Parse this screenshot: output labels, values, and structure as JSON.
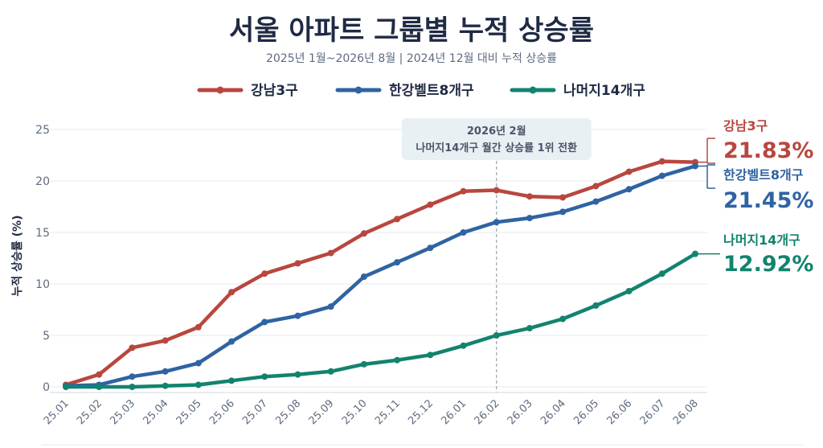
{
  "chart_data": {
    "type": "line",
    "title": "서울 아파트 그룹별 누적 상승률",
    "subtitle": "2025년 1월~2026년 8월  |  2024년 12월 대비 누적 상승률",
    "ylabel": "누적 상승률 (%)",
    "xlabel": "",
    "ylim": [
      0,
      25
    ],
    "yticks": [
      "0",
      "5",
      "10",
      "15",
      "20",
      "25"
    ],
    "categories": [
      "25.01",
      "25.02",
      "25.03",
      "25.04",
      "25.05",
      "25.06",
      "25.07",
      "25.08",
      "25.09",
      "25.10",
      "25.11",
      "25.12",
      "26.01",
      "26.02",
      "26.03",
      "26.04",
      "26.05",
      "26.06",
      "26.07",
      "26.08"
    ],
    "series": [
      {
        "name": "강남3구",
        "color": "#b8473f",
        "values": [
          0.2,
          1.2,
          3.8,
          4.5,
          5.8,
          9.2,
          11.0,
          12.0,
          13.0,
          14.9,
          16.3,
          17.7,
          19.0,
          19.1,
          18.5,
          18.4,
          19.5,
          20.9,
          21.9,
          21.83
        ],
        "end_label": "21.83%"
      },
      {
        "name": "한강벨트8개구",
        "color": "#2f63a3",
        "values": [
          0.1,
          0.2,
          1.0,
          1.5,
          2.3,
          4.4,
          6.3,
          6.9,
          7.8,
          10.7,
          12.1,
          13.5,
          15.0,
          16.0,
          16.4,
          17.0,
          18.0,
          19.2,
          20.5,
          21.45
        ],
        "end_label": "21.45%"
      },
      {
        "name": "나머지14개구",
        "color": "#12836e",
        "values": [
          0.0,
          0.0,
          0.0,
          0.1,
          0.2,
          0.6,
          1.0,
          1.2,
          1.5,
          2.2,
          2.6,
          3.1,
          4.0,
          5.0,
          5.7,
          6.6,
          7.9,
          9.3,
          11.0,
          12.92
        ],
        "end_label": "12.92%"
      }
    ],
    "annotation": {
      "category": "26.02",
      "line1": "2026년 2월",
      "line2": "나머지14개구 월간 상승률 1위 전환"
    },
    "grid": true,
    "legend": "top-center"
  }
}
